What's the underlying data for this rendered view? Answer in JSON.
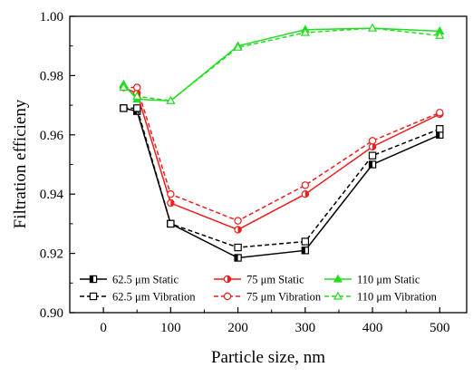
{
  "chart_data": {
    "type": "line",
    "xlabel": "Particle size, nm",
    "ylabel": "Filtration efficieny",
    "xlim": [
      -50,
      540
    ],
    "ylim": [
      0.9,
      1.0
    ],
    "xticks": [
      0,
      100,
      200,
      300,
      400,
      500
    ],
    "xtick_labels": [
      "0",
      "100",
      "200",
      "300",
      "400",
      "500"
    ],
    "yticks": [
      0.9,
      0.92,
      0.94,
      0.96,
      0.98,
      1.0
    ],
    "ytick_labels": [
      "0.90",
      "0.92",
      "0.94",
      "0.96",
      "0.98",
      "1.00"
    ],
    "grid": false,
    "legend_position": "bottom",
    "series": [
      {
        "name": "62.5 μm Static",
        "color": "#000000",
        "dash": false,
        "marker": "square-half",
        "x": [
          30,
          50,
          100,
          200,
          300,
          400,
          500
        ],
        "y": [
          0.969,
          0.968,
          0.93,
          0.9185,
          0.921,
          0.95,
          0.96
        ]
      },
      {
        "name": "62.5 μm Vibration",
        "color": "#000000",
        "dash": true,
        "marker": "square-open",
        "x": [
          30,
          50,
          100,
          200,
          300,
          400,
          500
        ],
        "y": [
          0.969,
          0.969,
          0.93,
          0.922,
          0.924,
          0.953,
          0.962
        ]
      },
      {
        "name": "75 μm Static",
        "color": "#ee1c1c",
        "dash": false,
        "marker": "circle-half",
        "x": [
          30,
          50,
          100,
          200,
          300,
          400,
          500
        ],
        "y": [
          0.976,
          0.974,
          0.937,
          0.928,
          0.94,
          0.956,
          0.967
        ]
      },
      {
        "name": "75 μm Vibration",
        "color": "#ee1c1c",
        "dash": true,
        "marker": "circle-open",
        "x": [
          30,
          50,
          100,
          200,
          300,
          400,
          500
        ],
        "y": [
          0.976,
          0.976,
          0.94,
          0.931,
          0.943,
          0.958,
          0.9675
        ]
      },
      {
        "name": "110 μm Static",
        "color": "#22dd22",
        "dash": false,
        "marker": "triangle-filled",
        "x": [
          30,
          50,
          100,
          200,
          300,
          400,
          500
        ],
        "y": [
          0.977,
          0.972,
          0.9715,
          0.99,
          0.9955,
          0.996,
          0.995
        ]
      },
      {
        "name": "110 μm Vibration",
        "color": "#22dd22",
        "dash": true,
        "marker": "triangle-open",
        "x": [
          30,
          50,
          100,
          200,
          300,
          400,
          500
        ],
        "y": [
          0.976,
          0.973,
          0.9715,
          0.9895,
          0.9945,
          0.996,
          0.9935
        ]
      }
    ]
  }
}
